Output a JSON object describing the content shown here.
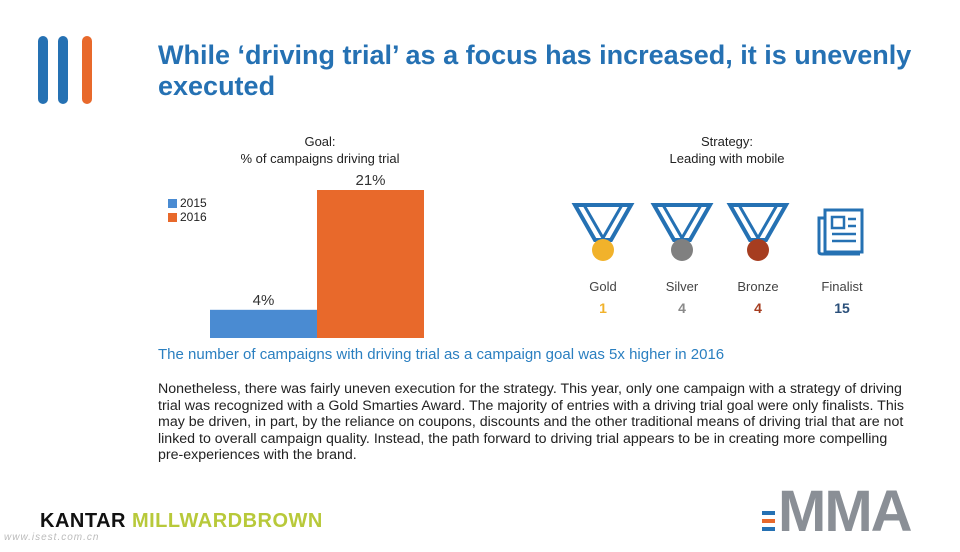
{
  "title": "While ‘driving trial’ as a focus has increased, it is unevenly executed",
  "colors": {
    "accent_blue": "#2571b3",
    "bar_2015": "#4a8bd2",
    "bar_2016": "#e8692b",
    "gold": "#f1b22b",
    "silver": "#808080",
    "bronze": "#a63d20",
    "finalist": "#2a7fc0"
  },
  "left_chart": {
    "title_line1": "Goal:",
    "title_line2": "% of campaigns driving trial"
  },
  "chart_data": {
    "type": "bar",
    "categories": [
      "2015",
      "2016"
    ],
    "series": [
      {
        "name": "% of campaigns driving trial",
        "values": [
          4,
          21
        ]
      }
    ],
    "data_labels": [
      "4%",
      "21%"
    ],
    "legend": [
      "2015",
      "2016"
    ],
    "legend_position": "top-left",
    "ylim": [
      0,
      21
    ],
    "grid": false
  },
  "right_panel": {
    "title_line1": "Strategy:",
    "title_line2": "Leading with mobile",
    "awards": [
      {
        "label": "Gold",
        "count": "1",
        "icon": "gold-medal-icon"
      },
      {
        "label": "Silver",
        "count": "4",
        "icon": "silver-medal-icon"
      },
      {
        "label": "Bronze",
        "count": "4",
        "icon": "bronze-medal-icon"
      },
      {
        "label": "Finalist",
        "count": "15",
        "icon": "finalist-document-icon"
      }
    ]
  },
  "caption": "The number of campaigns with driving trial as a campaign goal was 5x higher in 2016",
  "body_text": "Nonetheless, there was fairly uneven execution for the strategy. This year, only one campaign with a strategy of driving trial was recognized with a Gold Smarties Award. The majority of entries with a driving trial goal were only finalists. This may be driven, in part, by the reliance on coupons, discounts and the other traditional means of driving trial that are not linked to overall campaign quality. Instead, the path forward to driving trial appears to be in creating more compelling pre-experiences with the brand.",
  "footer": {
    "kantar_part1": "KANTAR",
    "kantar_part2": "MILLWARDBROWN",
    "watermark": "www.isest.com.cn",
    "mma": "MMA"
  }
}
